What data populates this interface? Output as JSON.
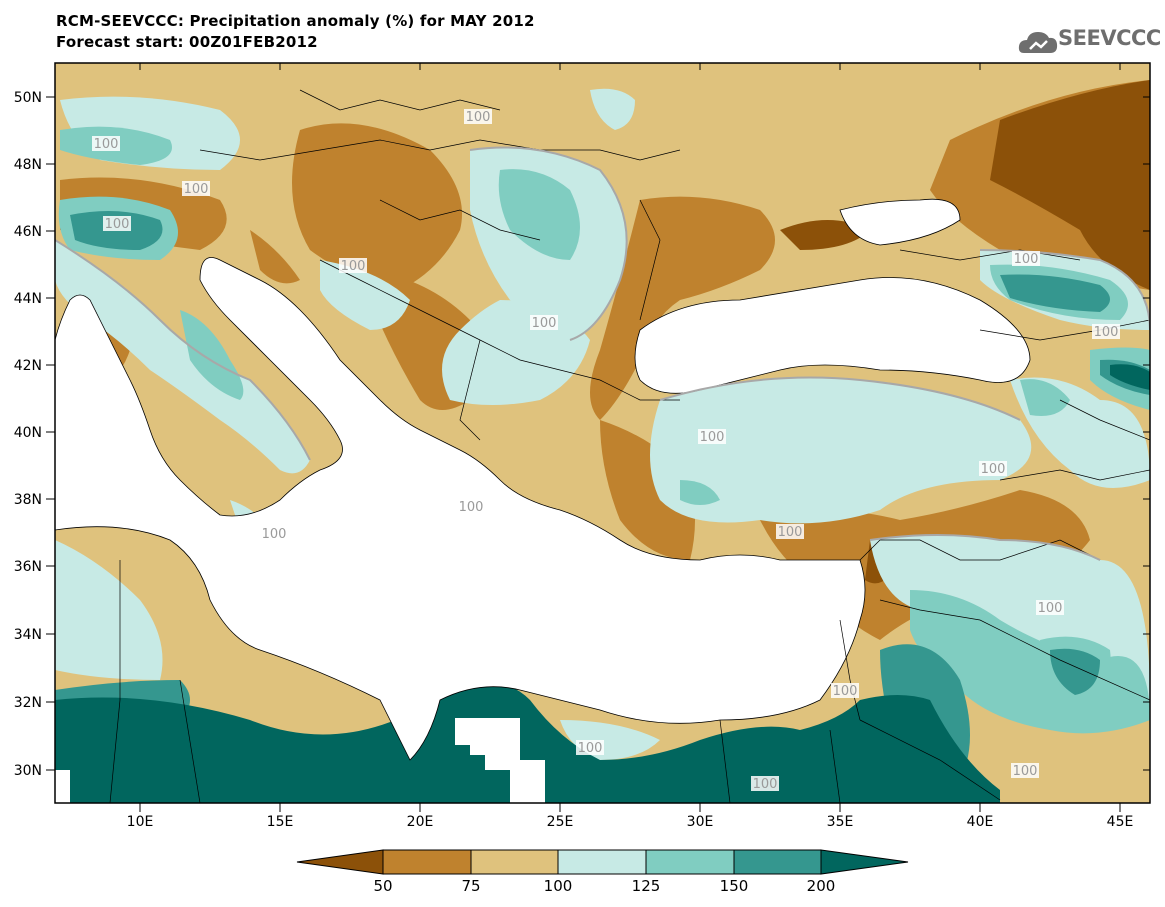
{
  "header": {
    "title_line1": "RCM-SEEVCCC: Precipitation anomaly (%) for MAY 2012",
    "title_line2": "Forecast start: 00Z01FEB2012",
    "logo_text": "SEEVCCC"
  },
  "map": {
    "lon_labels": [
      "10E",
      "15E",
      "20E",
      "25E",
      "30E",
      "35E",
      "40E",
      "45E"
    ],
    "lat_labels": [
      "50N",
      "48N",
      "46N",
      "44N",
      "42N",
      "40N",
      "38N",
      "36N",
      "34N",
      "32N",
      "30N"
    ],
    "contour_labels": [
      "100",
      "100",
      "100",
      "100",
      "100",
      "100",
      "100",
      "100",
      "100",
      "100",
      "100",
      "100",
      "100",
      "100",
      "100",
      "100",
      "100",
      "100"
    ]
  },
  "colorbar": {
    "ticks": [
      "50",
      "75",
      "100",
      "125",
      "150",
      "200"
    ],
    "colors": {
      "below_50": "#8c5109",
      "50_75": "#bf822e",
      "75_100": "#dfc27d",
      "100_125": "#c7eae5",
      "125_150": "#80cdc1",
      "150_200": "#35978f",
      "above_200": "#01665e"
    }
  }
}
